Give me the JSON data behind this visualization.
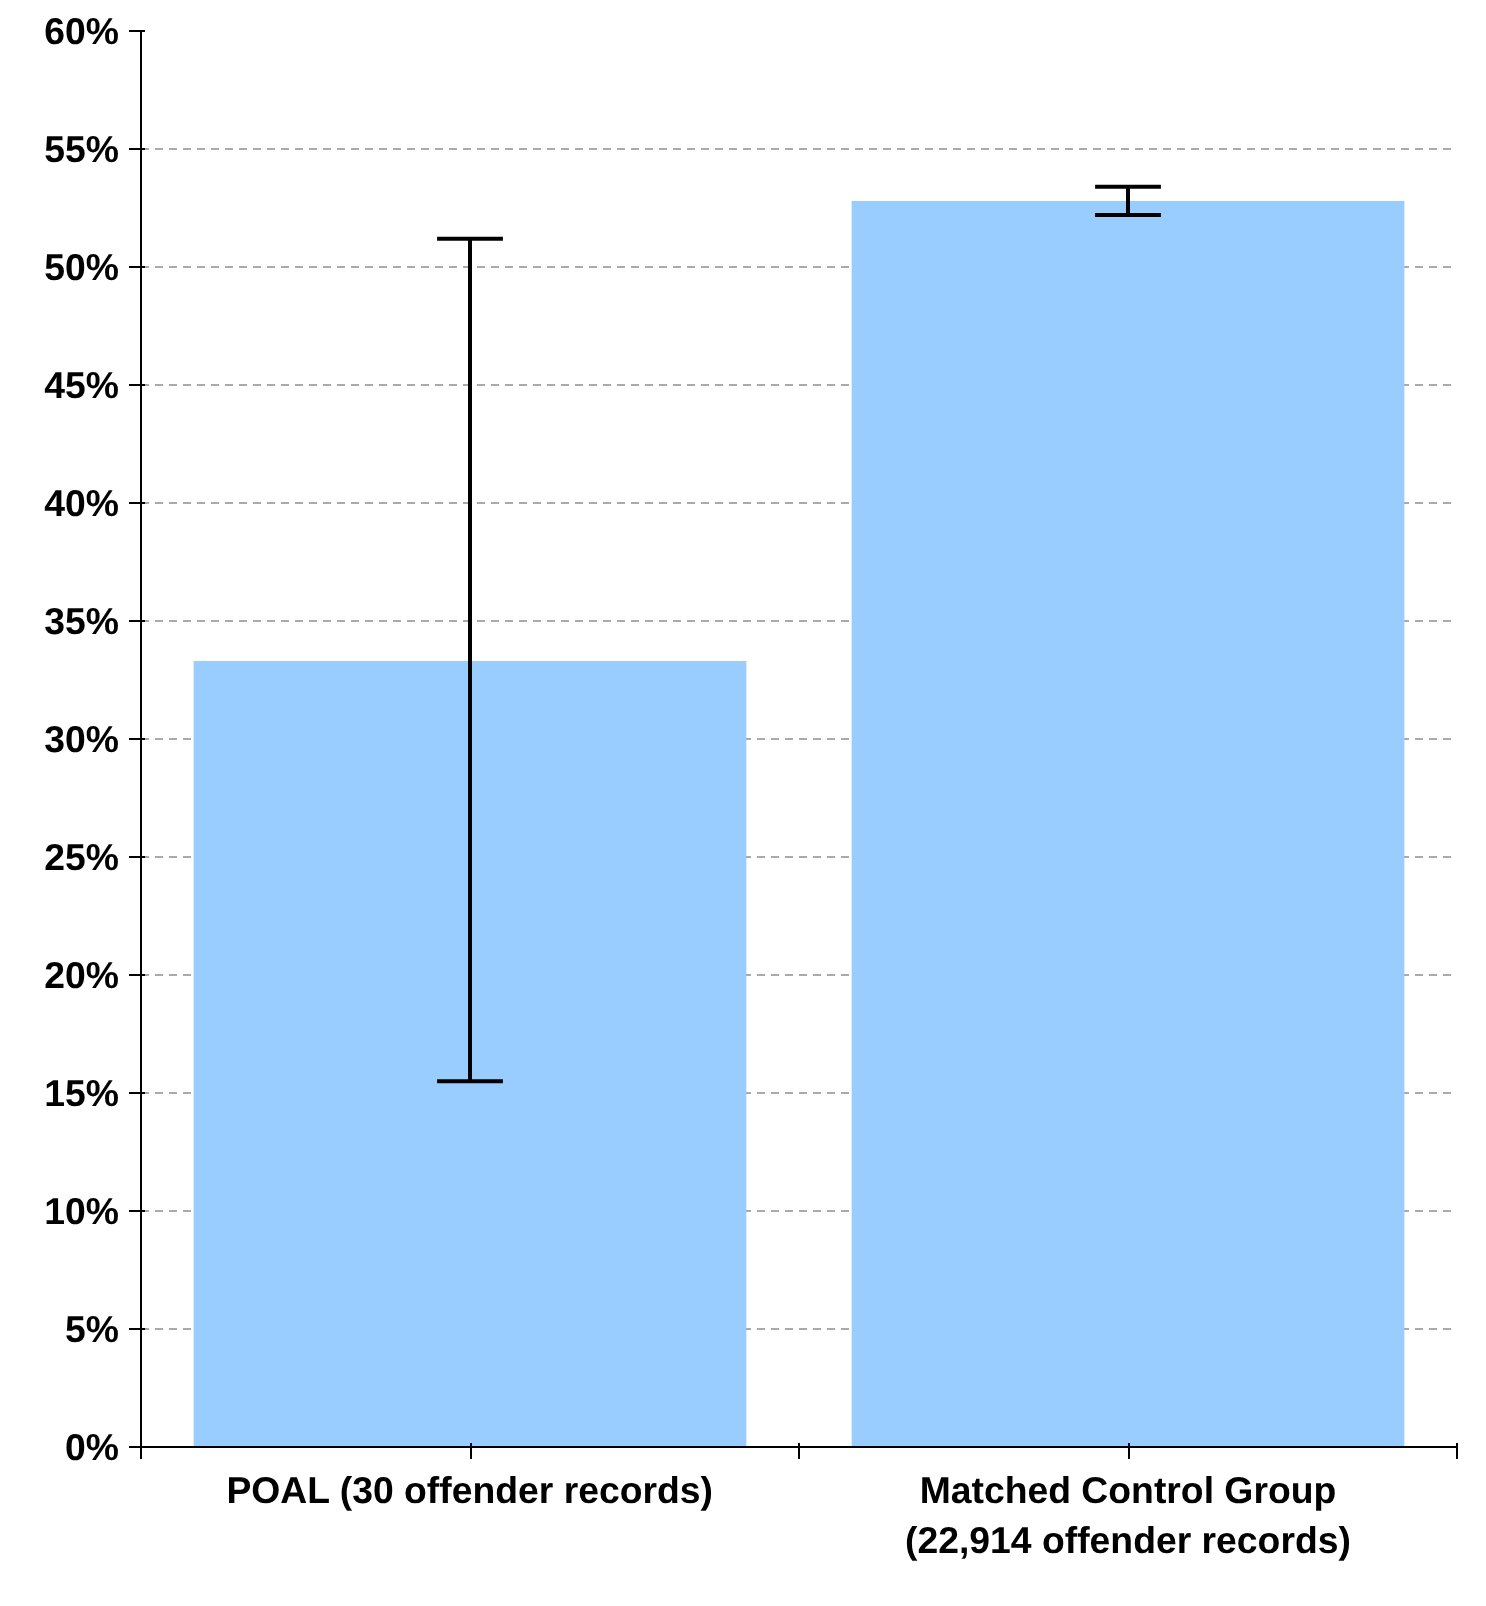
{
  "chart_data": {
    "type": "bar",
    "categories": [
      "POAL (30 offender records)",
      "Matched Control Group\n(22,914 offender records)"
    ],
    "values": [
      33.3,
      52.8
    ],
    "color": "#99ccff",
    "errors": [
      [
        15.5,
        51.2
      ],
      [
        52.2,
        53.4
      ]
    ],
    "ylim": [
      0,
      60
    ],
    "yticks": [
      {
        "value": 0,
        "label": "0%"
      },
      {
        "value": 5,
        "label": "5%"
      },
      {
        "value": 10,
        "label": "10%"
      },
      {
        "value": 15,
        "label": "15%"
      },
      {
        "value": 20,
        "label": "20%"
      },
      {
        "value": 25,
        "label": "25%"
      },
      {
        "value": 30,
        "label": "30%"
      },
      {
        "value": 35,
        "label": "35%"
      },
      {
        "value": 40,
        "label": "40%"
      },
      {
        "value": 45,
        "label": "45%"
      },
      {
        "value": 50,
        "label": "50%"
      },
      {
        "value": 55,
        "label": "55%"
      },
      {
        "value": 60,
        "label": "60%"
      }
    ],
    "grid": "y"
  }
}
